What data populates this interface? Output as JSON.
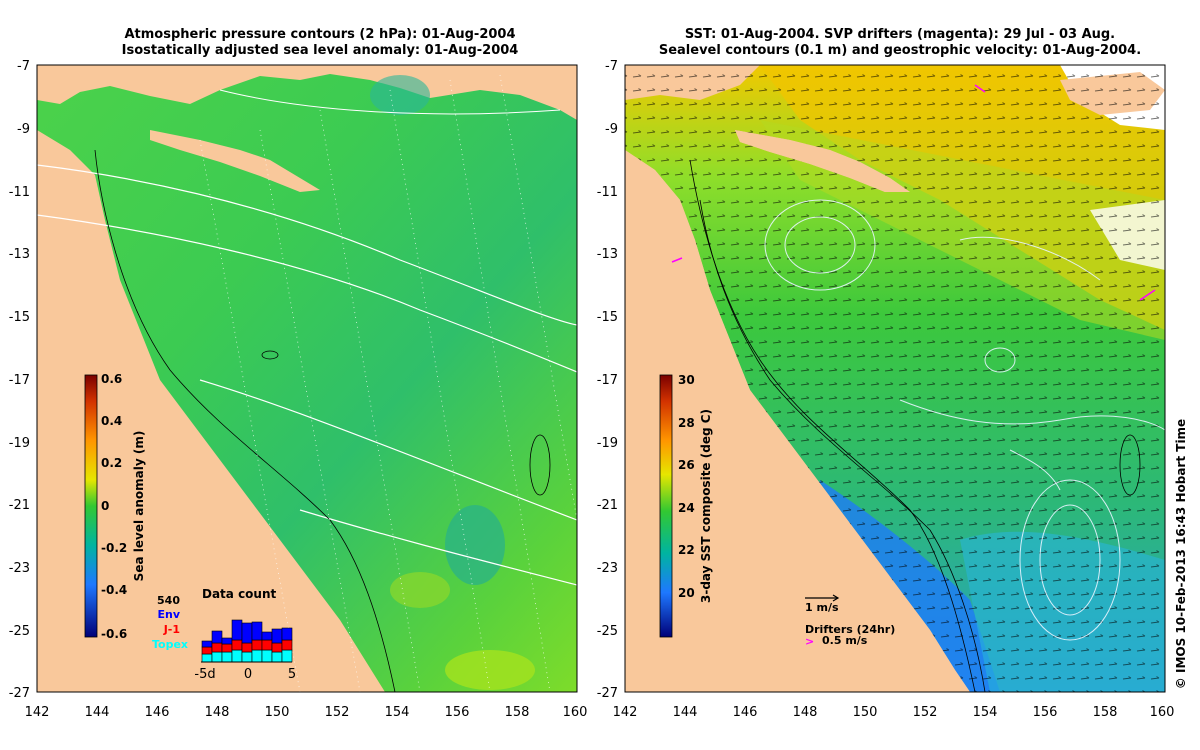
{
  "left_map": {
    "title_line1": "Atmospheric pressure contours (2 hPa): 01-Aug-2004",
    "title_line2": "Isostatically adjusted sea level anomaly: 01-Aug-2004",
    "x_ticks": [
      "142",
      "144",
      "146",
      "148",
      "150",
      "152",
      "154",
      "156",
      "158",
      "160"
    ],
    "y_ticks": [
      "-7",
      "-9",
      "-11",
      "-13",
      "-15",
      "-17",
      "-19",
      "-21",
      "-23",
      "-25",
      "-27"
    ],
    "colorbar": {
      "label": "Sea level anomaly (m)",
      "ticks": [
        "0.6",
        "0.4",
        "0.2",
        "0",
        "-0.2",
        "-0.4",
        "-0.6"
      ]
    },
    "data_count": {
      "title": "Data count",
      "max_label": "540",
      "missions": [
        {
          "name": "Env",
          "color": "#0000ff"
        },
        {
          "name": "J-1",
          "color": "#ff0000"
        },
        {
          "name": "Topex",
          "color": "#00ffff"
        }
      ],
      "x_ticks": [
        "-5d",
        "0",
        "5"
      ]
    }
  },
  "right_map": {
    "title_line1": "SST: 01-Aug-2004. SVP drifters (magenta): 29 Jul - 03 Aug.",
    "title_line2": "Sealevel contours (0.1 m) and geostrophic velocity: 01-Aug-2004.",
    "x_ticks": [
      "142",
      "144",
      "146",
      "148",
      "150",
      "152",
      "154",
      "156",
      "158",
      "160"
    ],
    "y_ticks": [
      "-7",
      "-9",
      "-11",
      "-13",
      "-15",
      "-17",
      "-19",
      "-21",
      "-23",
      "-25",
      "-27"
    ],
    "colorbar": {
      "label": "3-day SST composite (deg C)",
      "ticks": [
        "30",
        "28",
        "26",
        "24",
        "22",
        "20"
      ]
    },
    "velocity_legend": "1 m/s",
    "drifter_legend_title": "Drifters (24hr)",
    "drifter_legend_speed": "0.5 m/s"
  },
  "credit": "© IMOS 10-Feb-2013 16:43 Hobart Time",
  "colors": {
    "land": "#f9c89b",
    "ocean_sla": "#3cc83c",
    "sst_warm": "#ffd000",
    "sst_cool": "#1e90ff",
    "drifter": "#ff00ff"
  }
}
